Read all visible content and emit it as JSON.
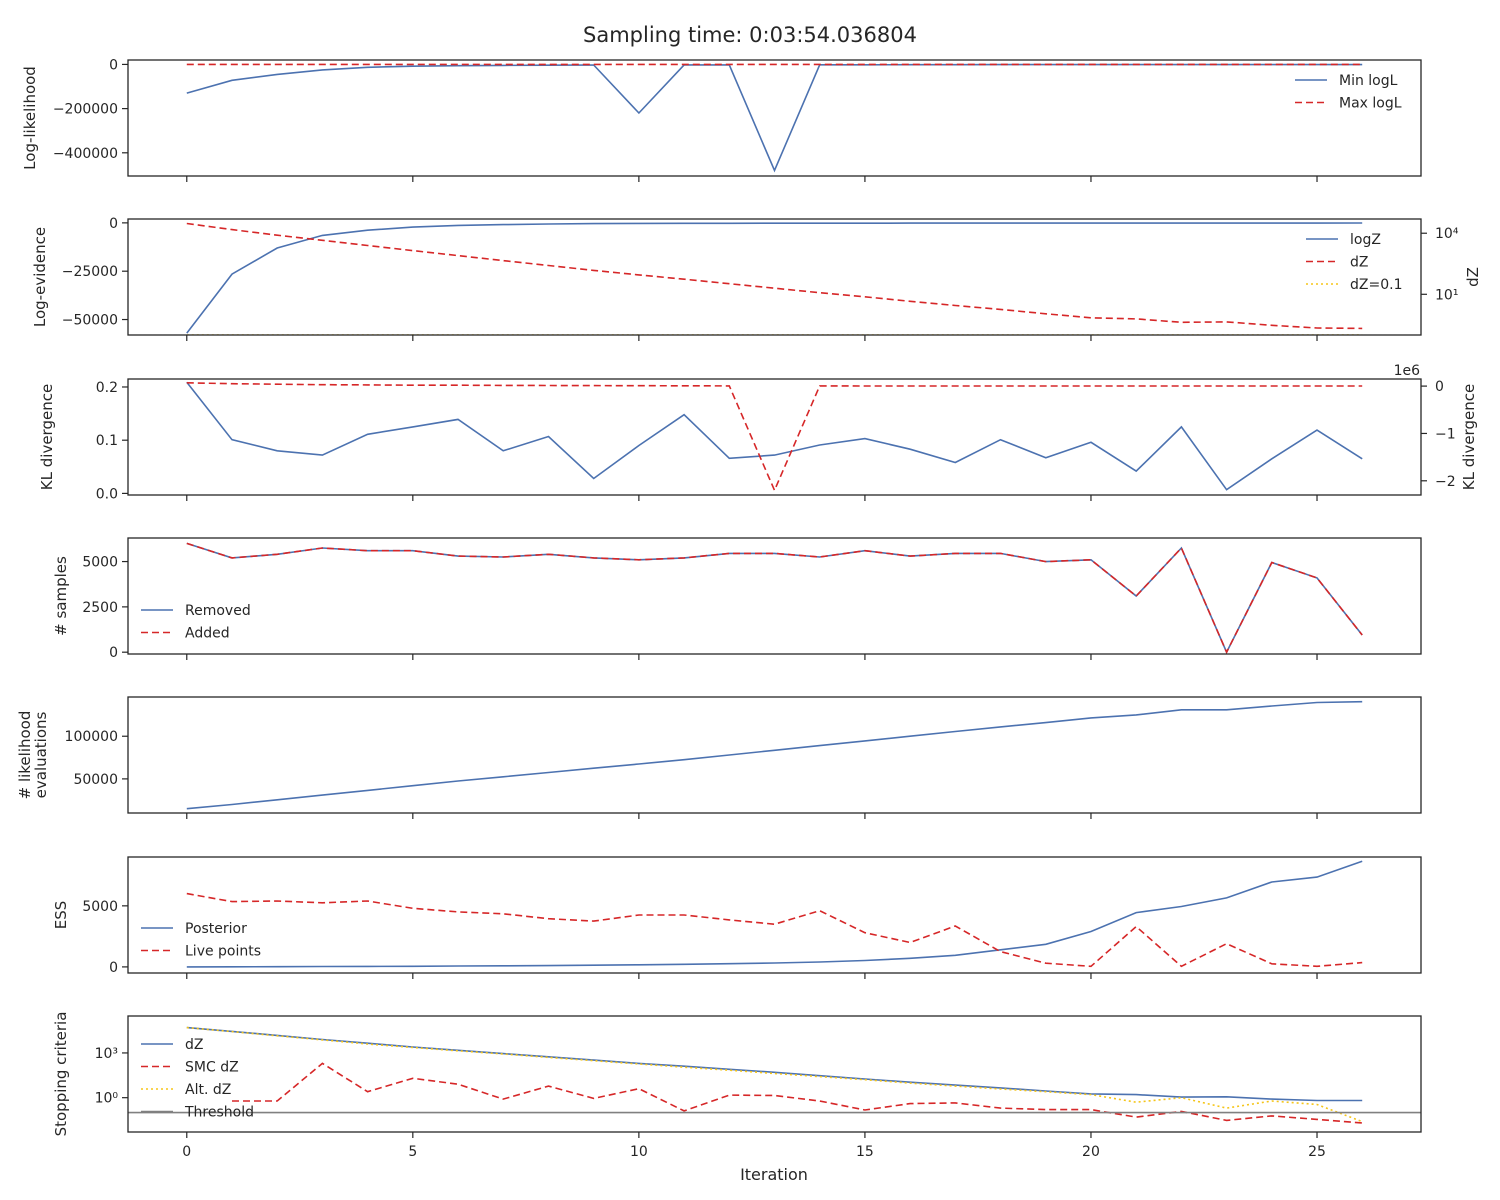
{
  "title": "Sampling time: 0:03:54.036804",
  "xlabel": "Iteration",
  "x_ticks": [
    0,
    5,
    10,
    15,
    20,
    25
  ],
  "x_range": [
    -1.3,
    27.3
  ],
  "colors": {
    "blue": "#4c72b0",
    "red": "#d62728",
    "yellow": "#f5c518",
    "gray": "#808080"
  },
  "chart_data": [
    {
      "type": "line",
      "ylabel": "Log-likelihood",
      "ylim": [
        -505000,
        20000
      ],
      "yticks": [
        0,
        -200000,
        -400000
      ],
      "ytick_labels": [
        "0",
        "−200000",
        "−400000"
      ],
      "legend_loc": "upper right",
      "x": [
        0,
        1,
        2,
        3,
        4,
        5,
        6,
        7,
        8,
        9,
        10,
        11,
        12,
        13,
        14,
        15,
        16,
        17,
        18,
        19,
        20,
        21,
        22,
        23,
        24,
        25,
        26
      ],
      "series": [
        {
          "name": "Min logL",
          "style": "solid",
          "color": "blue",
          "values": [
            -130000,
            -72000,
            -45000,
            -25000,
            -13000,
            -8000,
            -6000,
            -4500,
            -3500,
            -2500,
            -220000,
            -2000,
            -2000,
            -480000,
            -1500,
            -1500,
            -1200,
            -1200,
            -1000,
            -1000,
            -900,
            -900,
            -800,
            -800,
            -700,
            -700,
            -600
          ]
        },
        {
          "name": "Max logL",
          "style": "dashed",
          "color": "red",
          "values": [
            0,
            0,
            0,
            0,
            0,
            0,
            0,
            0,
            0,
            0,
            0,
            0,
            0,
            0,
            0,
            0,
            0,
            0,
            0,
            0,
            0,
            0,
            0,
            0,
            0,
            0,
            0
          ]
        }
      ]
    },
    {
      "type": "line",
      "ylabel": "Log-evidence",
      "ylim": [
        -58000,
        2000
      ],
      "yticks": [
        0,
        -25000,
        -50000
      ],
      "ytick_labels": [
        "0",
        "−25000",
        "−50000"
      ],
      "y2label": "dZ",
      "y2scale": "log",
      "y2lim": [
        0.1,
        50000
      ],
      "y2ticks": [
        10,
        10000
      ],
      "y2tick_labels": [
        "10¹",
        "10⁴"
      ],
      "legend_loc": "upper right",
      "x": [
        0,
        1,
        2,
        3,
        4,
        5,
        6,
        7,
        8,
        9,
        10,
        11,
        12,
        13,
        14,
        15,
        16,
        17,
        18,
        19,
        20,
        21,
        22,
        23,
        24,
        25,
        26
      ],
      "series": [
        {
          "name": "logZ",
          "style": "solid",
          "color": "blue",
          "axis": "left",
          "values": [
            -57000,
            -26500,
            -13000,
            -6500,
            -3800,
            -2200,
            -1300,
            -900,
            -600,
            -400,
            -300,
            -250,
            -200,
            -180,
            -160,
            -150,
            -140,
            -130,
            -120,
            -115,
            -110,
            -105,
            -100,
            -98,
            -96,
            -95,
            -94
          ]
        },
        {
          "name": "dZ",
          "style": "dashed",
          "color": "red",
          "axis": "right",
          "values": [
            30000,
            15000,
            8000,
            4500,
            2500,
            1400,
            800,
            450,
            260,
            150,
            90,
            55,
            33,
            20,
            12,
            7.5,
            4.5,
            2.8,
            1.8,
            1.1,
            0.7,
            0.62,
            0.42,
            0.44,
            0.3,
            0.22,
            0.21
          ]
        },
        {
          "name": "dZ=0.1",
          "style": "dotted",
          "color": "yellow",
          "axis": "right",
          "values": [
            0.1,
            0.1,
            0.1,
            0.1,
            0.1,
            0.1,
            0.1,
            0.1,
            0.1,
            0.1,
            0.1,
            0.1,
            0.1,
            0.1,
            0.1,
            0.1,
            0.1,
            0.1,
            0.1,
            0.1,
            0.1,
            0.1,
            0.1,
            0.1,
            0.1,
            0.1,
            0.1
          ]
        }
      ]
    },
    {
      "type": "line",
      "ylabel": "KL divergence",
      "ylim": [
        -0.003,
        0.215
      ],
      "yticks": [
        0.0,
        0.1,
        0.2
      ],
      "ytick_labels": [
        "0.0",
        "0.1",
        "0.2"
      ],
      "y2label": "KL divergence",
      "y2lim": [
        -2.3,
        0.15
      ],
      "y2ticks": [
        0,
        -1,
        -2
      ],
      "y2tick_labels": [
        "0",
        "−1",
        "−2"
      ],
      "y2_offset_text": "1e6",
      "x": [
        0,
        1,
        2,
        3,
        4,
        5,
        6,
        7,
        8,
        9,
        10,
        11,
        12,
        13,
        14,
        15,
        16,
        17,
        18,
        19,
        20,
        21,
        22,
        23,
        24,
        25,
        26
      ],
      "series": [
        {
          "style": "solid",
          "color": "blue",
          "axis": "left",
          "values": [
            0.209,
            0.101,
            0.08,
            0.072,
            0.111,
            0.125,
            0.139,
            0.08,
            0.107,
            0.028,
            0.09,
            0.148,
            0.066,
            0.072,
            0.091,
            0.103,
            0.083,
            0.058,
            0.101,
            0.067,
            0.096,
            0.042,
            0.125,
            0.007,
            0.065,
            0.119,
            0.065
          ]
        },
        {
          "style": "dashed",
          "color": "red",
          "axis": "right",
          "values": [
            0.07,
            0.05,
            0.04,
            0.03,
            0.025,
            0.02,
            0.018,
            0.015,
            0.012,
            0.01,
            0.008,
            0.006,
            0.005,
            -2.2,
            0.004,
            0.003,
            0.003,
            0.002,
            0.002,
            0.002,
            0.002,
            0.002,
            0.002,
            0.002,
            0.002,
            0.002,
            0.002
          ]
        }
      ]
    },
    {
      "type": "line",
      "ylabel": "# samples",
      "ylim": [
        -100,
        6300
      ],
      "yticks": [
        0,
        2500,
        5000
      ],
      "ytick_labels": [
        "0",
        "2500",
        "5000"
      ],
      "legend_loc": "lower left",
      "x": [
        0,
        1,
        2,
        3,
        4,
        5,
        6,
        7,
        8,
        9,
        10,
        11,
        12,
        13,
        14,
        15,
        16,
        17,
        18,
        19,
        20,
        21,
        22,
        23,
        24,
        25,
        26
      ],
      "series": [
        {
          "name": "Removed",
          "style": "solid",
          "color": "blue",
          "values": [
            6000,
            5200,
            5400,
            5750,
            5600,
            5600,
            5300,
            5250,
            5400,
            5200,
            5100,
            5200,
            5450,
            5450,
            5250,
            5600,
            5300,
            5450,
            5450,
            5000,
            5100,
            3100,
            5750,
            0,
            4950,
            4100,
            950
          ]
        },
        {
          "name": "Added",
          "style": "dashed",
          "color": "red",
          "values": [
            6000,
            5200,
            5400,
            5750,
            5600,
            5600,
            5300,
            5250,
            5400,
            5200,
            5100,
            5200,
            5450,
            5450,
            5250,
            5600,
            5300,
            5450,
            5450,
            5000,
            5100,
            3100,
            5750,
            0,
            4950,
            4100,
            950
          ]
        }
      ]
    },
    {
      "type": "line",
      "ylabel": "# likelihood\nevaluations",
      "ylim": [
        10000,
        146000
      ],
      "yticks": [
        50000,
        100000
      ],
      "ytick_labels": [
        "50000",
        "100000"
      ],
      "x": [
        0,
        1,
        2,
        3,
        4,
        5,
        6,
        7,
        8,
        9,
        10,
        11,
        12,
        13,
        14,
        15,
        16,
        17,
        18,
        19,
        20,
        21,
        22,
        23,
        24,
        25,
        26
      ],
      "series": [
        {
          "style": "solid",
          "color": "blue",
          "values": [
            15000,
            20000,
            25500,
            31000,
            36500,
            42000,
            47500,
            52500,
            57500,
            62500,
            67500,
            72500,
            78000,
            83500,
            89000,
            94500,
            100000,
            105500,
            111000,
            116000,
            121500,
            125000,
            131000,
            131000,
            135500,
            139500,
            140500
          ]
        }
      ]
    },
    {
      "type": "line",
      "ylabel": "ESS",
      "ylim": [
        -500,
        9000
      ],
      "yticks": [
        0,
        5000
      ],
      "ytick_labels": [
        "0",
        "5000"
      ],
      "legend_loc": "center left",
      "x": [
        0,
        1,
        2,
        3,
        4,
        5,
        6,
        7,
        8,
        9,
        10,
        11,
        12,
        13,
        14,
        15,
        16,
        17,
        18,
        19,
        20,
        21,
        22,
        23,
        24,
        25,
        26
      ],
      "series": [
        {
          "name": "Posterior",
          "style": "solid",
          "color": "blue",
          "values": [
            0,
            10,
            20,
            30,
            40,
            50,
            70,
            90,
            110,
            140,
            170,
            210,
            260,
            320,
            400,
            520,
            700,
            950,
            1400,
            1850,
            2900,
            4450,
            4950,
            5650,
            6950,
            7350,
            8650
          ]
        },
        {
          "name": "Live points",
          "style": "dashed",
          "color": "red",
          "values": [
            6000,
            5350,
            5400,
            5250,
            5400,
            4800,
            4500,
            4350,
            3950,
            3750,
            4250,
            4250,
            3850,
            3500,
            4600,
            2800,
            2000,
            3350,
            1250,
            300,
            50,
            3300,
            50,
            1900,
            250,
            50,
            350
          ]
        }
      ]
    },
    {
      "type": "line",
      "ylabel": "Stopping criteria",
      "xlabel": "Iteration",
      "yscale": "log",
      "ylim": [
        0.005,
        300000
      ],
      "yticks": [
        1,
        1000
      ],
      "ytick_labels": [
        "10⁰",
        "10³"
      ],
      "legend_loc": "center left",
      "x": [
        0,
        1,
        2,
        3,
        4,
        5,
        6,
        7,
        8,
        9,
        10,
        11,
        12,
        13,
        14,
        15,
        16,
        17,
        18,
        19,
        20,
        21,
        22,
        23,
        24,
        25,
        26
      ],
      "series": [
        {
          "name": "dZ",
          "style": "solid",
          "color": "blue",
          "values": [
            50000,
            28000,
            15000,
            8000,
            4500,
            2500,
            1500,
            900,
            550,
            330,
            200,
            130,
            80,
            50,
            30,
            18,
            11,
            7,
            4.5,
            2.8,
            1.8,
            1.6,
            1.1,
            1.15,
            0.8,
            0.65,
            0.65
          ]
        },
        {
          "name": "SMC dZ",
          "style": "dashed",
          "color": "red",
          "values": [
            null,
            0.6,
            0.6,
            200,
            2.5,
            20,
            8,
            0.8,
            6,
            0.9,
            4,
            0.13,
            1.5,
            1.4,
            0.6,
            0.15,
            0.4,
            0.45,
            0.2,
            0.16,
            0.16,
            0.05,
            0.12,
            0.03,
            0.06,
            0.035,
            0.02
          ]
        },
        {
          "name": "Alt. dZ",
          "style": "dotted",
          "color": "yellow",
          "values": [
            50000,
            27000,
            14000,
            7500,
            4000,
            2300,
            1400,
            850,
            500,
            300,
            180,
            110,
            70,
            42,
            26,
            16,
            9.5,
            6,
            3.8,
            2.5,
            1.6,
            0.5,
            1.0,
            0.2,
            0.6,
            0.35,
            0.025
          ]
        },
        {
          "name": "Threshold",
          "style": "solid",
          "color": "gray",
          "axis_line": true,
          "values": [
            0.1,
            0.1,
            0.1,
            0.1,
            0.1,
            0.1,
            0.1,
            0.1,
            0.1,
            0.1,
            0.1,
            0.1,
            0.1,
            0.1,
            0.1,
            0.1,
            0.1,
            0.1,
            0.1,
            0.1,
            0.1,
            0.1,
            0.1,
            0.1,
            0.1,
            0.1,
            0.1
          ]
        }
      ]
    }
  ]
}
